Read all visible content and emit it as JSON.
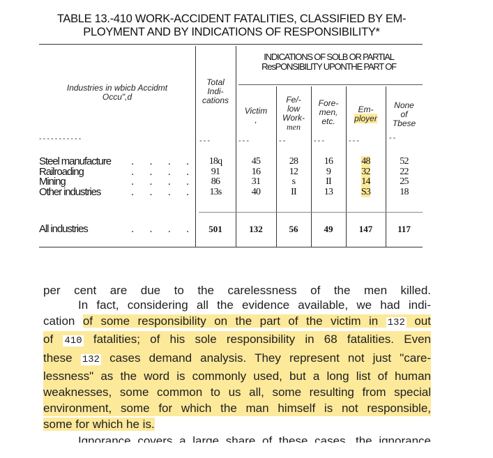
{
  "table": {
    "title_line1": "TABLE 13.-410 WORK-ACCIDENT FATALITIES, CLASSIFIED BY EM-",
    "title_line2": "PLOYMENT AND BY INDICATIONS OF RESPONSIBILITY*",
    "group_header_line1": "INDICATIONS OF SOLB OR PARTIAL",
    "group_header_line2": "ResPONSIBILITY UPONTHE PART OF",
    "stub_header_line1": "Industries in wbicb Accidmt",
    "stub_header_line2": "Occu\",d",
    "columns": [
      {
        "lines": [
          "Total",
          "Indi-",
          "cations"
        ]
      },
      {
        "lines": [
          "Victim",
          ","
        ]
      },
      {
        "lines": [
          "Fe/-",
          "low",
          "Work-",
          "men"
        ]
      },
      {
        "lines": [
          "Fore-",
          "men,",
          "etc."
        ]
      },
      {
        "lines": [
          "Em-",
          "ployer"
        ]
      },
      {
        "lines": [
          "None",
          "of",
          "Tbese"
        ]
      }
    ],
    "rows": [
      {
        "label": "Steel manufacture",
        "values": [
          "18q",
          "45",
          "28",
          "16",
          "48",
          "52"
        ]
      },
      {
        "label": "Railroading",
        "values": [
          "91",
          "16",
          "12",
          "9",
          "32",
          "22"
        ]
      },
      {
        "label": "Mining",
        "values": [
          "86",
          "31",
          "s",
          "II",
          "14",
          "25"
        ]
      },
      {
        "label": "Other industries",
        "values": [
          "13s",
          "40",
          "II",
          "13",
          "S3",
          "18"
        ]
      }
    ],
    "total_row": {
      "label": "All industries",
      "values": [
        "501",
        "132",
        "56",
        "49",
        "147",
        "117"
      ]
    },
    "highlight_color": "#fde99a"
  },
  "text": {
    "line0": "per cent are due to the carelessness of the men killed.",
    "line1": "In fact, considering all the evidence available, we had indi-",
    "line2a": "cation",
    "line2b": "of some responsibility on the part of the victim in",
    "line2num": "132",
    "line2c": "out",
    "line3a": "of",
    "line3num": "410",
    "line3b": "fatalities; of his sole responsibility in 68 fatalities.",
    "line3c": "Even",
    "line4a": "these",
    "line4num": "132",
    "line4b": "cases demand analysis. They represent not just \"care-",
    "line5": "lessness\" as the word is commonly used, but a long list of human",
    "line6": "weaknesses, some common to us all, some resulting from special",
    "line7": "environment, some for which the man himself is not responsible,",
    "line8": "some for which he is.",
    "line9": "Ignorance covers a large share of these cases, the ignorance"
  }
}
